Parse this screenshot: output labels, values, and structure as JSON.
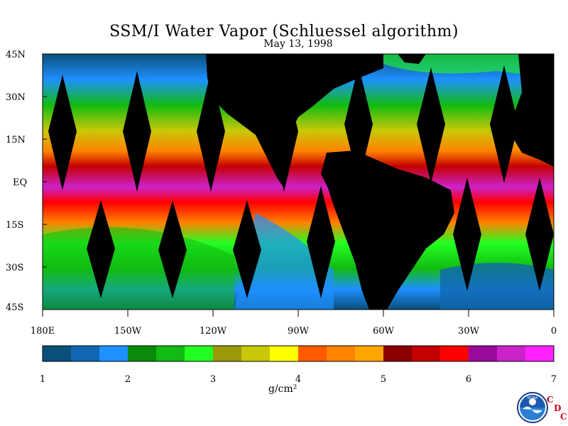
{
  "map": {
    "title": "SSM/I Water Vapor (Schluessel algorithm)",
    "date": "May 13, 1998",
    "lat_labels": [
      "45N",
      "30N",
      "15N",
      "EQ",
      "15S",
      "30S",
      "45S"
    ],
    "lon_labels": [
      "180E",
      "150W",
      "120W",
      "90W",
      "60W",
      "30W",
      "0"
    ],
    "colorbar": {
      "unit": "g/cm²",
      "tick_labels": [
        "1",
        "2",
        "3",
        "4",
        "5",
        "6",
        "7"
      ],
      "colors": [
        "#0a4f7a",
        "#1066b0",
        "#1e90ff",
        "#0a8a0a",
        "#11bb11",
        "#22ff22",
        "#9a9a08",
        "#c8c808",
        "#ffff00",
        "#ff5a00",
        "#ff8200",
        "#ffa500",
        "#8b0000",
        "#c40000",
        "#ff0000",
        "#9a0a9a",
        "#cc22cc",
        "#ff22ff"
      ]
    }
  },
  "logo": {
    "agency": "NOAA",
    "letters": [
      "C",
      "D",
      "C"
    ]
  }
}
